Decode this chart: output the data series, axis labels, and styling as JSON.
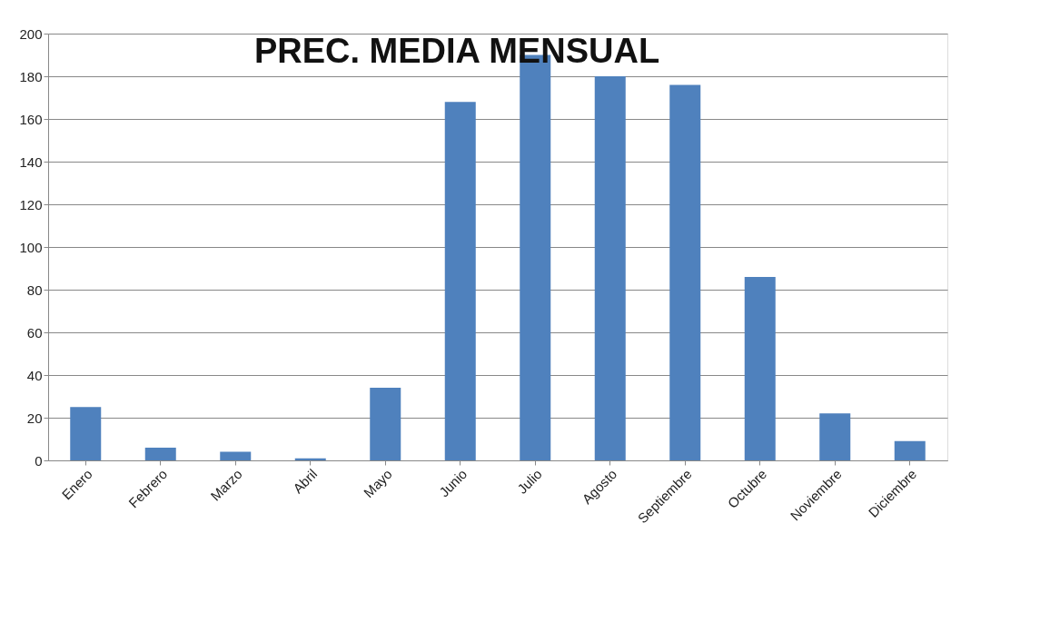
{
  "chart_data": {
    "type": "bar",
    "title": "PREC. MEDIA MENSUAL",
    "categories": [
      "Enero",
      "Febrero",
      "Marzo",
      "Abril",
      "Mayo",
      "Junio",
      "Julio",
      "Agosto",
      "Septiembre",
      "Octubre",
      "Noviembre",
      "Diciembre"
    ],
    "values": [
      25,
      6,
      4,
      1,
      34,
      168,
      190,
      180,
      176,
      86,
      22,
      9
    ],
    "color": "#4f81bd",
    "ylim": [
      0,
      200
    ],
    "yticks": [
      0,
      20,
      40,
      60,
      80,
      100,
      120,
      140,
      160,
      180,
      200
    ],
    "grid": "y"
  }
}
